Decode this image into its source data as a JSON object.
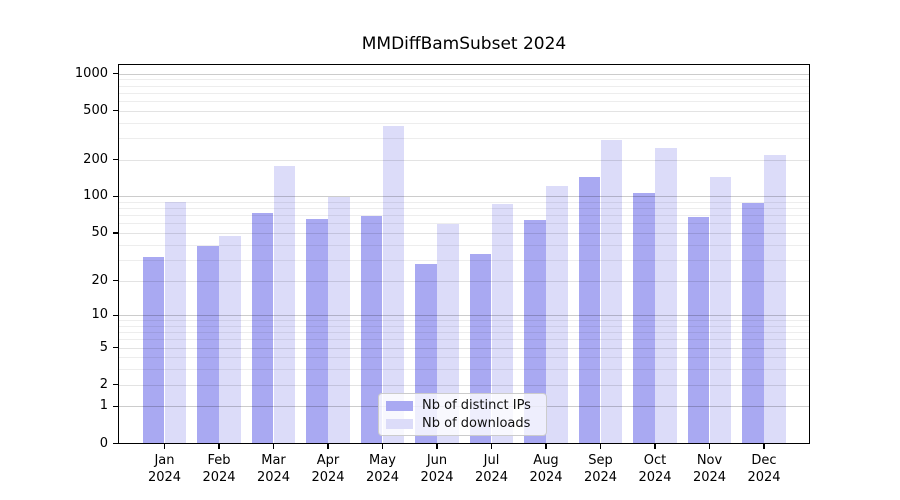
{
  "figure": {
    "background": "#ffffff",
    "text_color": "#000000"
  },
  "chart_data": {
    "type": "bar",
    "title": "MMDiffBamSubset 2024",
    "categories": [
      "Jan",
      "Feb",
      "Mar",
      "Apr",
      "May",
      "Jun",
      "Jul",
      "Aug",
      "Sep",
      "Oct",
      "Nov",
      "Dec"
    ],
    "category_year": "2024",
    "series": [
      {
        "name": "Nb of distinct IPs",
        "color": "#a9a9f2",
        "values": [
          32,
          39,
          74,
          66,
          70,
          28,
          34,
          65,
          145,
          108,
          68,
          89
        ]
      },
      {
        "name": "Nb of downloads",
        "color": "#dcdcf9",
        "values": [
          91,
          48,
          178,
          100,
          380,
          60,
          88,
          123,
          290,
          252,
          145,
          220
        ]
      }
    ],
    "xlabel": "",
    "ylabel": "",
    "yscale": "log1p",
    "yticks": [
      0,
      1,
      2,
      5,
      10,
      20,
      50,
      100,
      200,
      500,
      1000
    ],
    "ylim": [
      0,
      1170
    ],
    "grid": "on",
    "legend_position": "lower-center-inside"
  }
}
